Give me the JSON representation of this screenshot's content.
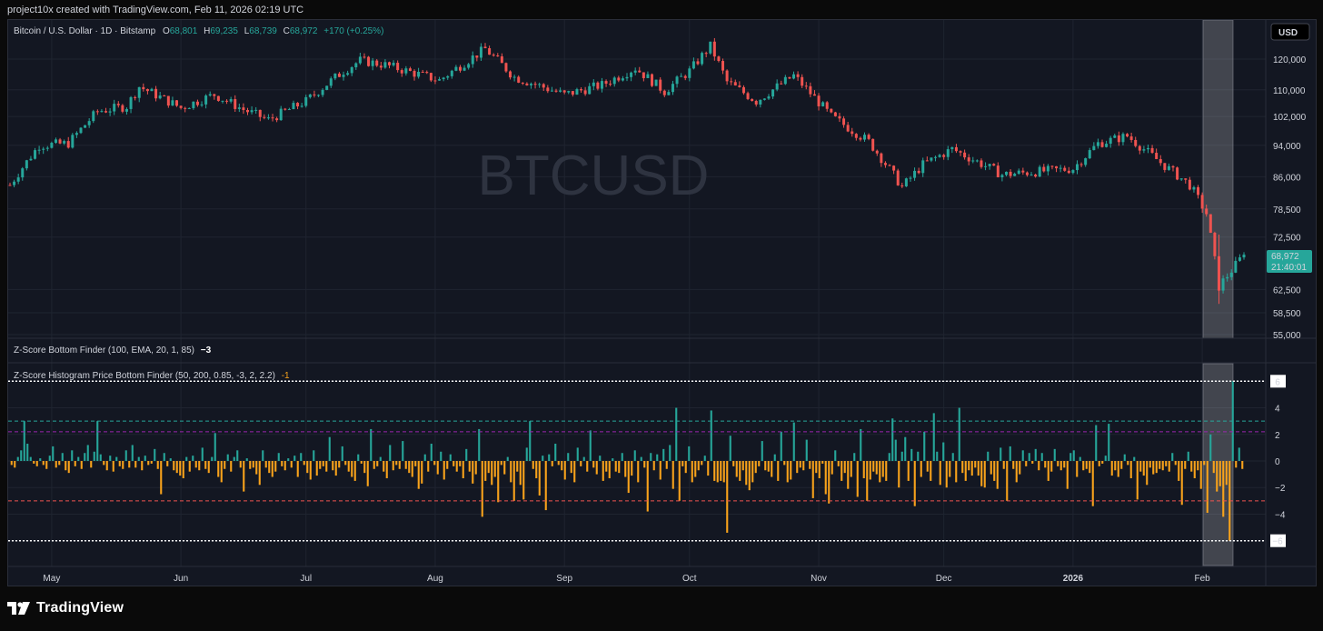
{
  "caption": "project10x created with TradingView.com, Feb 11, 2026 02:19 UTC",
  "brand": "TradingView",
  "icons": {
    "logo": "tradingview-logo-icon"
  },
  "colors": {
    "bull": "#26a69a",
    "bear": "#ef5350",
    "hist_pos": "#26a69a",
    "hist_neg": "#f7a21b",
    "bg": "#131722",
    "grid": "#1f2430",
    "text": "#d1d4dc",
    "price_label": "#26a69a"
  },
  "header": {
    "symbol": "Bitcoin / U.S. Dollar · 1D · Bitstamp",
    "open_label": "O",
    "open_value": "68,801",
    "high_label": "H",
    "high_value": "69,235",
    "low_label": "L",
    "low_value": "68,739",
    "close_label": "C",
    "close_value": "68,972",
    "change": "+170 (+0.25%)"
  },
  "currency_button": "USD",
  "watermark": "BTCUSD",
  "price_tag": {
    "value": "68,972",
    "countdown": "21:40:01"
  },
  "indicator1": {
    "label": "Z-Score Bottom Finder (100, EMA, 20, 1, 85)",
    "value": "−3"
  },
  "indicator2": {
    "label": "Z-Score Histogram Price Bottom Finder (50, 200, 0.85, -3, 2, 2.2)",
    "value": "-1"
  },
  "chart_data": [
    {
      "type": "candlestick",
      "title": "Bitcoin / U.S. Dollar · 1D · Bitstamp",
      "y_scale": "log",
      "y_ticks": [
        "120,000",
        "110,000",
        "102,000",
        "94,000",
        "86,000",
        "78,500",
        "72,500",
        "62,500",
        "58,500",
        "55,000"
      ],
      "y_tick_values": [
        120000,
        110000,
        102000,
        94000,
        86000,
        78500,
        72500,
        62500,
        58500,
        55000
      ],
      "x_ticks": [
        "May",
        "Jun",
        "Jul",
        "Aug",
        "Sep",
        "Oct",
        "Nov",
        "Dec",
        "2026",
        "Feb"
      ],
      "x_range": [
        "2025-04-21",
        "2026-02-11"
      ],
      "approx_daily_close": [
        [
          "2025-04-21",
          84000
        ],
        [
          "2025-04-28",
          94000
        ],
        [
          "2025-05-05",
          94500
        ],
        [
          "2025-05-12",
          103500
        ],
        [
          "2025-05-19",
          105000
        ],
        [
          "2025-05-22",
          111000
        ],
        [
          "2025-06-01",
          104500
        ],
        [
          "2025-06-09",
          108500
        ],
        [
          "2025-06-16",
          104000
        ],
        [
          "2025-06-22",
          101000
        ],
        [
          "2025-07-01",
          106500
        ],
        [
          "2025-07-10",
          116000
        ],
        [
          "2025-07-14",
          119500
        ],
        [
          "2025-07-20",
          118000
        ],
        [
          "2025-08-02",
          113000
        ],
        [
          "2025-08-13",
          123500
        ],
        [
          "2025-08-20",
          114000
        ],
        [
          "2025-09-01",
          108500
        ],
        [
          "2025-09-10",
          111500
        ],
        [
          "2025-09-18",
          117000
        ],
        [
          "2025-09-25",
          109500
        ],
        [
          "2025-10-01",
          116000
        ],
        [
          "2025-10-06",
          124500
        ],
        [
          "2025-10-10",
          112500
        ],
        [
          "2025-10-17",
          106500
        ],
        [
          "2025-10-26",
          114500
        ],
        [
          "2025-11-04",
          102000
        ],
        [
          "2025-11-13",
          95000
        ],
        [
          "2025-11-21",
          83500
        ],
        [
          "2025-11-26",
          89000
        ],
        [
          "2025-12-03",
          93000
        ],
        [
          "2025-12-15",
          86500
        ],
        [
          "2026-01-01",
          88000
        ],
        [
          "2026-01-07",
          94500
        ],
        [
          "2026-01-14",
          96500
        ],
        [
          "2026-01-22",
          89500
        ],
        [
          "2026-01-29",
          84000
        ],
        [
          "2026-02-02",
          77500
        ],
        [
          "2026-02-05",
          63000
        ],
        [
          "2026-02-11",
          68972
        ]
      ]
    },
    {
      "type": "bar",
      "title": "Z-Score Histogram Price Bottom Finder (50, 200, 0.85, -3, 2, 2.2)",
      "y_ticks": [
        "6",
        "4",
        "2",
        "0",
        "−2",
        "−4",
        "−6"
      ],
      "y_tick_values": [
        6,
        4,
        2,
        0,
        -2,
        -4,
        -6
      ],
      "ylim": [
        -6.5,
        6.5
      ],
      "threshold_lines": [
        3,
        2.2,
        -3,
        6,
        -6
      ],
      "values": [
        -0.3,
        -0.5,
        0.3,
        0.8,
        3,
        1.3,
        0.3,
        -0.2,
        -0.4,
        0.2,
        -0.3,
        -0.6,
        0.4,
        1.1,
        -0.5,
        -0.3,
        0.6,
        -0.7,
        -0.9,
        0.8,
        -0.4,
        0.3,
        -0.6,
        0.6,
        1.2,
        -0.5,
        0.7,
        3,
        0.5,
        -0.3,
        -0.7,
        0.4,
        -0.8,
        0.3,
        -0.4,
        -0.6,
        0.8,
        -0.5,
        1.2,
        -0.5,
        0.3,
        -0.7,
        0.4,
        -0.3,
        -0.2,
        0.9,
        -0.6,
        -2.5,
        0.6,
        -0.4,
        0.2,
        -0.7,
        -0.9,
        -1.1,
        -1.3,
        0.3,
        -0.8,
        0.4,
        -0.5,
        -0.7,
        1.0,
        -0.6,
        -0.9,
        0.3,
        2.1,
        -1.2,
        -1.6,
        -0.6,
        0.5,
        -0.8,
        0.3,
        0.8,
        -0.5,
        -2.3,
        0.2,
        -0.6,
        -0.5,
        -1.0,
        -1.8,
        0.8,
        -0.5,
        -0.9,
        -1.2,
        -0.8,
        0.6,
        -0.4,
        -0.7,
        0.2,
        -0.5,
        0.4,
        -1.2,
        0.6,
        -0.3,
        -0.9,
        -1.4,
        0.8,
        -1.1,
        -0.6,
        -0.4,
        -0.8,
        1.8,
        -0.7,
        -1.1,
        -0.5,
        1.1,
        -0.3,
        -0.8,
        -1.2,
        -1.5,
        0.5,
        -0.2,
        -0.9,
        -1.9,
        2.4,
        -0.6,
        -0.4,
        0.3,
        -0.8,
        -1.3,
        1.2,
        -0.7,
        -0.3,
        -0.6,
        1.5,
        -0.6,
        -0.9,
        -1.2,
        -0.4,
        -2.1,
        -1.7,
        0.5,
        -0.8,
        1.3,
        -0.3,
        -1.0,
        0.7,
        -1.4,
        -0.6,
        0.5,
        -0.4,
        -0.8,
        -0.4,
        -1.3,
        0.9,
        -0.8,
        -1.7,
        -1.0,
        2.4,
        -4.2,
        -1.5,
        -0.9,
        -1.8,
        -1.2,
        -3.1,
        -0.3,
        -1.0,
        0.3,
        -1.6,
        -3.0,
        -0.8,
        -1.8,
        -2.9,
        1.0,
        3.0,
        -0.6,
        -1.3,
        -2.6,
        0.4,
        -3.7,
        0.5,
        -0.4,
        1.3,
        -0.3,
        -0.7,
        -1.4,
        0.6,
        -0.9,
        -1.6,
        1.0,
        -0.4,
        0.3,
        -0.8,
        2.3,
        -0.5,
        -1.0,
        0.4,
        -1.5,
        -0.8,
        -1.3,
        0.2,
        -0.8,
        -0.9,
        0.6,
        -1.2,
        -2.4,
        -1.1,
        0.8,
        -1.6,
        0.3,
        -0.5,
        -3.8,
        0.6,
        -0.7,
        0.5,
        -1.4,
        0.9,
        -0.6,
        1.2,
        -2.1,
        4.0,
        -3.0,
        -0.4,
        -0.9,
        1.1,
        -1.6,
        -1.2,
        -0.7,
        -0.3,
        0.4,
        -1.1,
        3.8,
        -1.5,
        -1.6,
        -1.5,
        -1.6,
        -5.4,
        1.9,
        -0.4,
        -1.2,
        -1.5,
        -0.7,
        -1.8,
        -2.2,
        -1.6,
        -0.9,
        -0.4,
        1.5,
        -0.7,
        -0.8,
        -1.2,
        0.5,
        -1.5,
        2.2,
        -0.3,
        -1.6,
        -1.4,
        2.9,
        -0.9,
        -0.5,
        -0.7,
        1.6,
        -0.6,
        -2.8,
        -0.9,
        -1.3,
        -0.2,
        -2.5,
        -3.2,
        -1.0,
        0.8,
        -0.4,
        -1.5,
        -0.9,
        -2.1,
        -1.2,
        0.6,
        -2.7,
        2.4,
        -1.3,
        -3.0,
        -1.4,
        -0.8,
        -1.0,
        -1.6,
        -1.2,
        -1.5,
        0.6,
        3.2,
        1.6,
        -2.0,
        0.7,
        1.8,
        -1.5,
        0.9,
        -3.4,
        0.7,
        -1.2,
        2.2,
        -0.8,
        -1.5,
        3.6,
        0.7,
        -1.8,
        1.4,
        -2.0,
        -1.2,
        0.6,
        -1.6,
        4.0,
        -0.9,
        -1.5,
        -0.7,
        -1.1,
        -0.5,
        -1.1,
        -1.9,
        -2.0,
        0.7,
        -1.0,
        -1.5,
        -2.1,
        1.0,
        -0.6,
        -3.0,
        1.1,
        -0.6,
        -1.6,
        -1.0,
        0.8,
        -0.4,
        0.6,
        -0.2,
        0.9,
        -0.7,
        0.6,
        -0.5,
        -1.5,
        -0.8,
        0.9,
        -0.4,
        -0.7,
        -0.5,
        -2.1,
        0.6,
        0.8,
        -1.2,
        0.3,
        -0.7,
        -0.6,
        -0.9,
        -3.4,
        2.7,
        -0.4,
        -0.2,
        0.4,
        2.8,
        -1.1,
        -0.7,
        -1.2,
        -0.6,
        0.5,
        -0.3,
        -1.3,
        0.3,
        -2.9,
        -0.8,
        -1.1,
        -1.8,
        -0.5,
        -1.0,
        -0.9,
        -0.6,
        -0.7,
        -0.4,
        -0.8,
        0.6,
        -0.3,
        -1.5,
        -3.3,
        -0.6,
        0.7,
        -0.8,
        -1.3,
        -0.7,
        -2.1,
        -0.3,
        -3.9,
        2.0,
        -0.9,
        -2.3,
        -1.9,
        -4.2,
        -1.8,
        -6.0,
        6.0,
        -0.5,
        1.0,
        -0.6
      ]
    }
  ]
}
